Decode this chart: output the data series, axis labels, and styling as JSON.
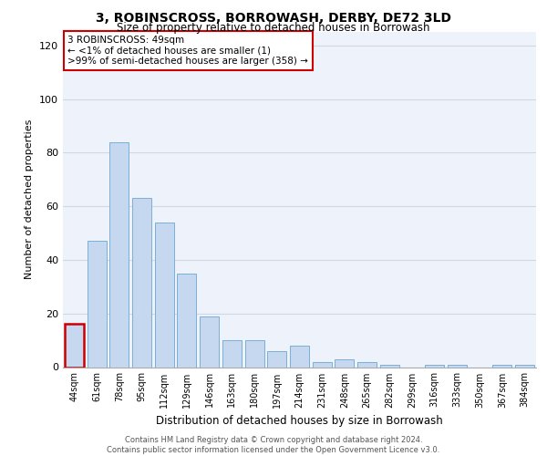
{
  "title": "3, ROBINSCROSS, BORROWASH, DERBY, DE72 3LD",
  "subtitle": "Size of property relative to detached houses in Borrowash",
  "xlabel": "Distribution of detached houses by size in Borrowash",
  "ylabel": "Number of detached properties",
  "categories": [
    "44sqm",
    "61sqm",
    "78sqm",
    "95sqm",
    "112sqm",
    "129sqm",
    "146sqm",
    "163sqm",
    "180sqm",
    "197sqm",
    "214sqm",
    "231sqm",
    "248sqm",
    "265sqm",
    "282sqm",
    "299sqm",
    "316sqm",
    "333sqm",
    "350sqm",
    "367sqm",
    "384sqm"
  ],
  "values": [
    16,
    47,
    84,
    63,
    54,
    35,
    19,
    10,
    10,
    6,
    8,
    2,
    3,
    2,
    1,
    0,
    1,
    1,
    0,
    1,
    1
  ],
  "bar_color": "#c5d8f0",
  "bar_edge_color": "#7aafd4",
  "highlight_index": 0,
  "highlight_edge_color": "#cc0000",
  "annotation_box_text": "3 ROBINSCROSS: 49sqm\n← <1% of detached houses are smaller (1)\n>99% of semi-detached houses are larger (358) →",
  "annotation_box_color": "#ffffff",
  "annotation_box_edge_color": "#cc0000",
  "ylim": [
    0,
    125
  ],
  "yticks": [
    0,
    20,
    40,
    60,
    80,
    100,
    120
  ],
  "grid_color": "#d0d8e8",
  "background_color": "#eef2fa",
  "footer_line1": "Contains HM Land Registry data © Crown copyright and database right 2024.",
  "footer_line2": "Contains public sector information licensed under the Open Government Licence v3.0."
}
